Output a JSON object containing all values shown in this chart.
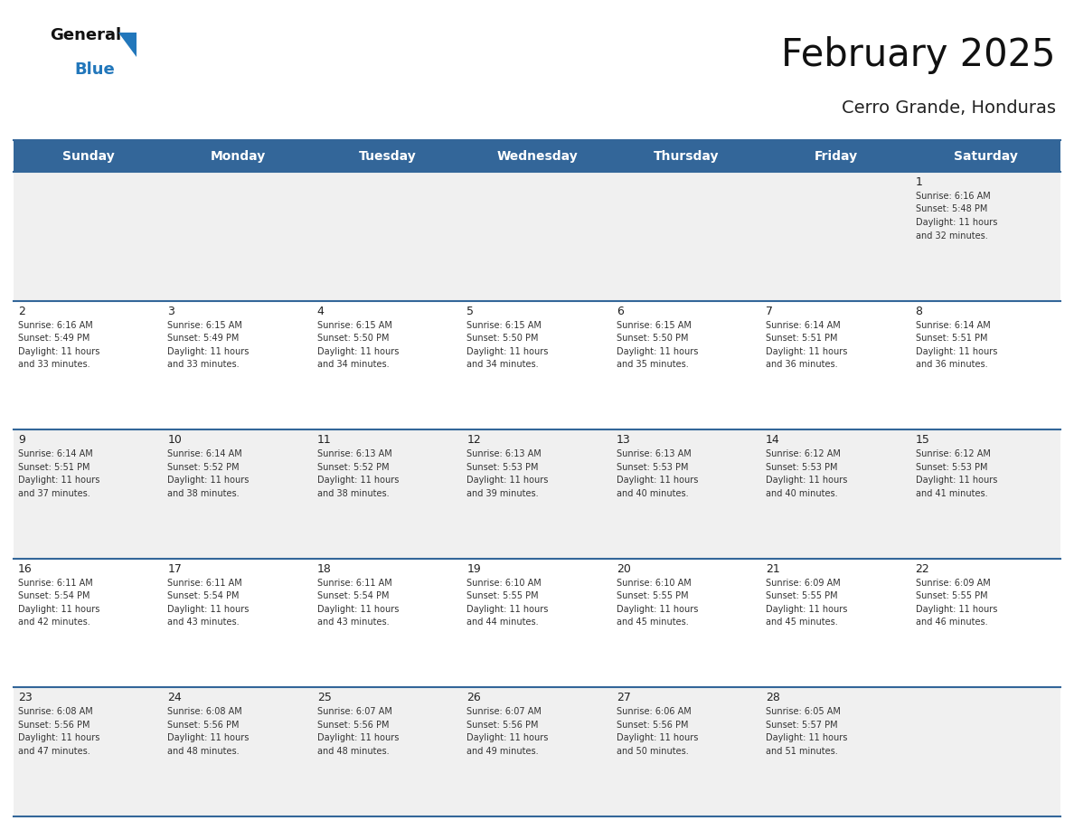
{
  "title": "February 2025",
  "subtitle": "Cerro Grande, Honduras",
  "days_of_week": [
    "Sunday",
    "Monday",
    "Tuesday",
    "Wednesday",
    "Thursday",
    "Friday",
    "Saturday"
  ],
  "header_bg": "#336699",
  "header_text": "#ffffff",
  "row_bg_odd": "#f0f0f0",
  "row_bg_even": "#ffffff",
  "day_num_color": "#222222",
  "info_text_color": "#333333",
  "border_color": "#336699",
  "title_color": "#111111",
  "subtitle_color": "#222222",
  "logo_general_color": "#111111",
  "logo_blue_color": "#2277bb",
  "calendar_data": [
    {
      "day": 1,
      "col": 6,
      "row": 0,
      "sunrise": "6:16 AM",
      "sunset": "5:48 PM",
      "daylight": "11 hours and 32 minutes."
    },
    {
      "day": 2,
      "col": 0,
      "row": 1,
      "sunrise": "6:16 AM",
      "sunset": "5:49 PM",
      "daylight": "11 hours and 33 minutes."
    },
    {
      "day": 3,
      "col": 1,
      "row": 1,
      "sunrise": "6:15 AM",
      "sunset": "5:49 PM",
      "daylight": "11 hours and 33 minutes."
    },
    {
      "day": 4,
      "col": 2,
      "row": 1,
      "sunrise": "6:15 AM",
      "sunset": "5:50 PM",
      "daylight": "11 hours and 34 minutes."
    },
    {
      "day": 5,
      "col": 3,
      "row": 1,
      "sunrise": "6:15 AM",
      "sunset": "5:50 PM",
      "daylight": "11 hours and 34 minutes."
    },
    {
      "day": 6,
      "col": 4,
      "row": 1,
      "sunrise": "6:15 AM",
      "sunset": "5:50 PM",
      "daylight": "11 hours and 35 minutes."
    },
    {
      "day": 7,
      "col": 5,
      "row": 1,
      "sunrise": "6:14 AM",
      "sunset": "5:51 PM",
      "daylight": "11 hours and 36 minutes."
    },
    {
      "day": 8,
      "col": 6,
      "row": 1,
      "sunrise": "6:14 AM",
      "sunset": "5:51 PM",
      "daylight": "11 hours and 36 minutes."
    },
    {
      "day": 9,
      "col": 0,
      "row": 2,
      "sunrise": "6:14 AM",
      "sunset": "5:51 PM",
      "daylight": "11 hours and 37 minutes."
    },
    {
      "day": 10,
      "col": 1,
      "row": 2,
      "sunrise": "6:14 AM",
      "sunset": "5:52 PM",
      "daylight": "11 hours and 38 minutes."
    },
    {
      "day": 11,
      "col": 2,
      "row": 2,
      "sunrise": "6:13 AM",
      "sunset": "5:52 PM",
      "daylight": "11 hours and 38 minutes."
    },
    {
      "day": 12,
      "col": 3,
      "row": 2,
      "sunrise": "6:13 AM",
      "sunset": "5:53 PM",
      "daylight": "11 hours and 39 minutes."
    },
    {
      "day": 13,
      "col": 4,
      "row": 2,
      "sunrise": "6:13 AM",
      "sunset": "5:53 PM",
      "daylight": "11 hours and 40 minutes."
    },
    {
      "day": 14,
      "col": 5,
      "row": 2,
      "sunrise": "6:12 AM",
      "sunset": "5:53 PM",
      "daylight": "11 hours and 40 minutes."
    },
    {
      "day": 15,
      "col": 6,
      "row": 2,
      "sunrise": "6:12 AM",
      "sunset": "5:53 PM",
      "daylight": "11 hours and 41 minutes."
    },
    {
      "day": 16,
      "col": 0,
      "row": 3,
      "sunrise": "6:11 AM",
      "sunset": "5:54 PM",
      "daylight": "11 hours and 42 minutes."
    },
    {
      "day": 17,
      "col": 1,
      "row": 3,
      "sunrise": "6:11 AM",
      "sunset": "5:54 PM",
      "daylight": "11 hours and 43 minutes."
    },
    {
      "day": 18,
      "col": 2,
      "row": 3,
      "sunrise": "6:11 AM",
      "sunset": "5:54 PM",
      "daylight": "11 hours and 43 minutes."
    },
    {
      "day": 19,
      "col": 3,
      "row": 3,
      "sunrise": "6:10 AM",
      "sunset": "5:55 PM",
      "daylight": "11 hours and 44 minutes."
    },
    {
      "day": 20,
      "col": 4,
      "row": 3,
      "sunrise": "6:10 AM",
      "sunset": "5:55 PM",
      "daylight": "11 hours and 45 minutes."
    },
    {
      "day": 21,
      "col": 5,
      "row": 3,
      "sunrise": "6:09 AM",
      "sunset": "5:55 PM",
      "daylight": "11 hours and 45 minutes."
    },
    {
      "day": 22,
      "col": 6,
      "row": 3,
      "sunrise": "6:09 AM",
      "sunset": "5:55 PM",
      "daylight": "11 hours and 46 minutes."
    },
    {
      "day": 23,
      "col": 0,
      "row": 4,
      "sunrise": "6:08 AM",
      "sunset": "5:56 PM",
      "daylight": "11 hours and 47 minutes."
    },
    {
      "day": 24,
      "col": 1,
      "row": 4,
      "sunrise": "6:08 AM",
      "sunset": "5:56 PM",
      "daylight": "11 hours and 48 minutes."
    },
    {
      "day": 25,
      "col": 2,
      "row": 4,
      "sunrise": "6:07 AM",
      "sunset": "5:56 PM",
      "daylight": "11 hours and 48 minutes."
    },
    {
      "day": 26,
      "col": 3,
      "row": 4,
      "sunrise": "6:07 AM",
      "sunset": "5:56 PM",
      "daylight": "11 hours and 49 minutes."
    },
    {
      "day": 27,
      "col": 4,
      "row": 4,
      "sunrise": "6:06 AM",
      "sunset": "5:56 PM",
      "daylight": "11 hours and 50 minutes."
    },
    {
      "day": 28,
      "col": 5,
      "row": 4,
      "sunrise": "6:05 AM",
      "sunset": "5:57 PM",
      "daylight": "11 hours and 51 minutes."
    }
  ]
}
